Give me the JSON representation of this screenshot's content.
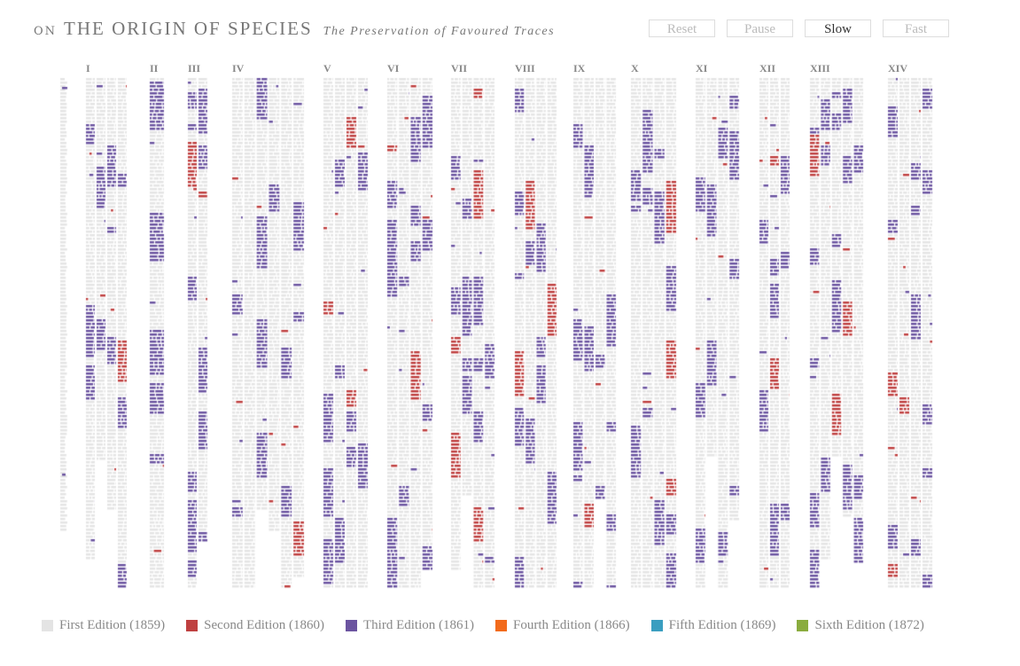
{
  "header": {
    "prefix": "ON",
    "title": "THE ORIGIN OF SPECIES",
    "subtitle": "The Preservation of Favoured Traces"
  },
  "controls": [
    {
      "label": "Reset",
      "active": false
    },
    {
      "label": "Pause",
      "active": false
    },
    {
      "label": "Slow",
      "active": true
    },
    {
      "label": "Fast",
      "active": false
    }
  ],
  "chapters": [
    "I",
    "II",
    "III",
    "IV",
    "V",
    "VI",
    "VII",
    "VIII",
    "IX",
    "X",
    "XI",
    "XII",
    "XIII",
    "XIV"
  ],
  "legend": [
    {
      "label": "First Edition (1859)",
      "color": "#e4e4e4"
    },
    {
      "label": "Second Edition (1860)",
      "color": "#bf4040"
    },
    {
      "label": "Third Edition (1861)",
      "color": "#6b54a0"
    },
    {
      "label": "Fourth Edition (1866)",
      "color": "#f26a1b"
    },
    {
      "label": "Fifth Edition (1869)",
      "color": "#3a9ec0"
    },
    {
      "label": "Sixth Edition (1872)",
      "color": "#8aac3e"
    }
  ]
}
